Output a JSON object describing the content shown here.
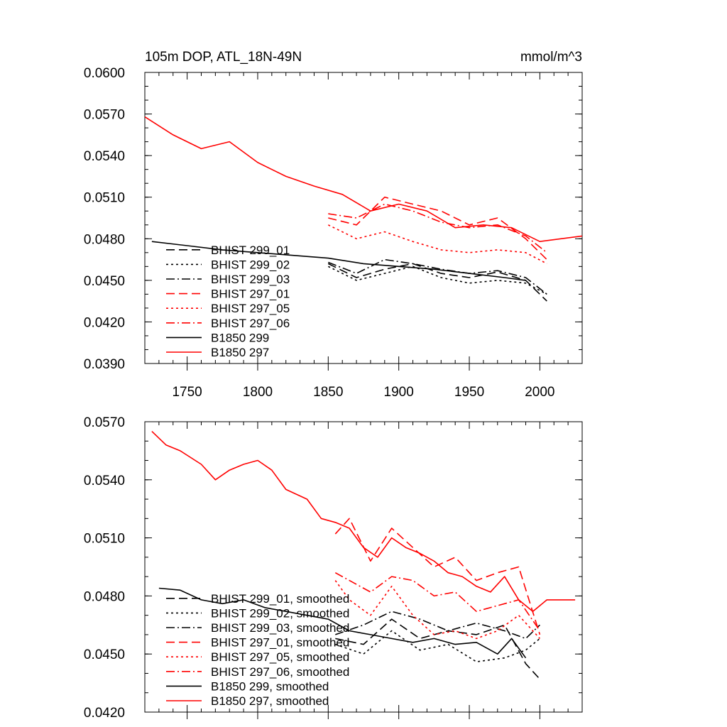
{
  "chart_data": [
    {
      "type": "line",
      "title": "105m DOP, ATL_18N-49N",
      "units": "mmol/m^3",
      "xlim": [
        1720,
        2030
      ],
      "ylim": [
        0.039,
        0.06
      ],
      "xticks": [
        "1750",
        "1800",
        "1850",
        "1900",
        "1950",
        "2000"
      ],
      "yticks": [
        "0.0390",
        "0.0420",
        "0.0450",
        "0.0480",
        "0.0510",
        "0.0540",
        "0.0570",
        "0.0600"
      ],
      "legend_position": "lower-left",
      "series": [
        {
          "name": "BHIST 299_01",
          "color": "#000000",
          "dash": "dashed",
          "x": [
            1850,
            1870,
            1890,
            1910,
            1930,
            1950,
            1970,
            1990,
            2005
          ],
          "y": [
            0.0462,
            0.0452,
            0.0458,
            0.0462,
            0.0455,
            0.0452,
            0.0456,
            0.045,
            0.0435
          ]
        },
        {
          "name": "BHIST 299_02",
          "color": "#000000",
          "dash": "dotted",
          "x": [
            1850,
            1870,
            1890,
            1910,
            1930,
            1950,
            1970,
            1990,
            2005
          ],
          "y": [
            0.046,
            0.045,
            0.0455,
            0.046,
            0.0452,
            0.0448,
            0.045,
            0.0448,
            0.044
          ]
        },
        {
          "name": "BHIST 299_03",
          "color": "#000000",
          "dash": "dashdot",
          "x": [
            1850,
            1870,
            1890,
            1910,
            1930,
            1950,
            1970,
            1990,
            2005
          ],
          "y": [
            0.0463,
            0.0455,
            0.0465,
            0.0462,
            0.0458,
            0.0455,
            0.0457,
            0.0452,
            0.044
          ]
        },
        {
          "name": "BHIST 297_01",
          "color": "#ff0000",
          "dash": "dashed",
          "x": [
            1850,
            1870,
            1890,
            1910,
            1930,
            1950,
            1970,
            1990,
            2005
          ],
          "y": [
            0.0495,
            0.049,
            0.051,
            0.0505,
            0.05,
            0.049,
            0.0495,
            0.048,
            0.0465
          ]
        },
        {
          "name": "BHIST 297_05",
          "color": "#ff0000",
          "dash": "dotted",
          "x": [
            1850,
            1870,
            1890,
            1910,
            1930,
            1950,
            1970,
            1990,
            2005
          ],
          "y": [
            0.049,
            0.048,
            0.0485,
            0.0478,
            0.0472,
            0.047,
            0.0472,
            0.047,
            0.0462
          ]
        },
        {
          "name": "BHIST 297_06",
          "color": "#ff0000",
          "dash": "dashdot",
          "x": [
            1850,
            1870,
            1890,
            1910,
            1930,
            1950,
            1970,
            1990,
            2005
          ],
          "y": [
            0.0498,
            0.0495,
            0.0505,
            0.05,
            0.0492,
            0.0488,
            0.049,
            0.0482,
            0.047
          ]
        },
        {
          "name": "B1850 299",
          "color": "#000000",
          "dash": "solid",
          "x": [
            1725,
            1750,
            1775,
            1800,
            1825,
            1850,
            1875,
            1900,
            1925,
            1950,
            1975,
            1990
          ],
          "y": [
            0.0478,
            0.0475,
            0.0472,
            0.047,
            0.0468,
            0.0466,
            0.0462,
            0.046,
            0.0458,
            0.0455,
            0.0452,
            0.045
          ]
        },
        {
          "name": "B1850 297",
          "color": "#ff0000",
          "dash": "solid",
          "x": [
            1720,
            1740,
            1760,
            1780,
            1800,
            1820,
            1840,
            1860,
            1880,
            1900,
            1920,
            1940,
            1960,
            1980,
            2000,
            2030
          ],
          "y": [
            0.0568,
            0.0555,
            0.0545,
            0.055,
            0.0535,
            0.0525,
            0.0518,
            0.0512,
            0.05,
            0.0505,
            0.05,
            0.0488,
            0.049,
            0.0488,
            0.0478,
            0.0482
          ]
        }
      ]
    },
    {
      "type": "line",
      "title": "",
      "xlim": [
        1720,
        2030
      ],
      "ylim": [
        0.042,
        0.057
      ],
      "yticks": [
        "0.0420",
        "0.0450",
        "0.0480",
        "0.0510",
        "0.0540",
        "0.0570"
      ],
      "legend_position": "lower-left",
      "series": [
        {
          "name": "BHIST 299_01, smoothed",
          "color": "#000000",
          "dash": "dashed",
          "x": [
            1855,
            1875,
            1895,
            1915,
            1935,
            1955,
            1975,
            1990,
            2000
          ],
          "y": [
            0.0458,
            0.0455,
            0.0468,
            0.0458,
            0.0462,
            0.046,
            0.0465,
            0.0445,
            0.0437
          ]
        },
        {
          "name": "BHIST 299_02, smoothed",
          "color": "#000000",
          "dash": "dotted",
          "x": [
            1855,
            1875,
            1895,
            1915,
            1935,
            1955,
            1975,
            1990,
            2000
          ],
          "y": [
            0.0455,
            0.045,
            0.0462,
            0.0452,
            0.0455,
            0.0446,
            0.0448,
            0.0452,
            0.0458
          ]
        },
        {
          "name": "BHIST 299_03, smoothed",
          "color": "#000000",
          "dash": "dashdot",
          "x": [
            1855,
            1875,
            1895,
            1915,
            1935,
            1955,
            1975,
            1990,
            2000
          ],
          "y": [
            0.046,
            0.0465,
            0.0472,
            0.0468,
            0.0462,
            0.0466,
            0.0462,
            0.0458,
            0.0465
          ]
        },
        {
          "name": "BHIST 297_01, smoothed",
          "color": "#ff0000",
          "dash": "dashed",
          "x": [
            1855,
            1865,
            1880,
            1895,
            1910,
            1925,
            1940,
            1955,
            1970,
            1985,
            2000
          ],
          "y": [
            0.0512,
            0.052,
            0.0498,
            0.0515,
            0.0505,
            0.0495,
            0.05,
            0.0488,
            0.0492,
            0.0495,
            0.046
          ]
        },
        {
          "name": "BHIST 297_05, smoothed",
          "color": "#ff0000",
          "dash": "dotted",
          "x": [
            1855,
            1865,
            1880,
            1895,
            1910,
            1925,
            1940,
            1955,
            1970,
            1985,
            2000
          ],
          "y": [
            0.0488,
            0.0478,
            0.047,
            0.0485,
            0.047,
            0.046,
            0.0462,
            0.0458,
            0.0462,
            0.047,
            0.0458
          ]
        },
        {
          "name": "BHIST 297_06, smoothed",
          "color": "#ff0000",
          "dash": "dashdot",
          "x": [
            1855,
            1865,
            1880,
            1895,
            1910,
            1925,
            1940,
            1955,
            1970,
            1985,
            2000
          ],
          "y": [
            0.0492,
            0.0488,
            0.0482,
            0.049,
            0.0488,
            0.048,
            0.0482,
            0.0472,
            0.0475,
            0.0478,
            0.0462
          ]
        },
        {
          "name": "B1850 299, smoothed",
          "color": "#000000",
          "dash": "solid",
          "x": [
            1730,
            1745,
            1760,
            1775,
            1790,
            1805,
            1820,
            1835,
            1850,
            1865,
            1880,
            1895,
            1910,
            1925,
            1940,
            1955,
            1970,
            1980,
            1990
          ],
          "y": [
            0.0484,
            0.0483,
            0.0478,
            0.0476,
            0.0478,
            0.0474,
            0.0472,
            0.047,
            0.0468,
            0.0462,
            0.046,
            0.0458,
            0.0456,
            0.0458,
            0.0455,
            0.0456,
            0.045,
            0.0458,
            0.0448
          ]
        },
        {
          "name": "B1850 297, smoothed",
          "color": "#ff0000",
          "dash": "solid",
          "x": [
            1725,
            1735,
            1745,
            1760,
            1770,
            1780,
            1790,
            1800,
            1810,
            1820,
            1835,
            1845,
            1855,
            1865,
            1875,
            1885,
            1895,
            1905,
            1915,
            1925,
            1935,
            1945,
            1955,
            1965,
            1975,
            1985,
            1995,
            2005,
            2015,
            2025
          ],
          "y": [
            0.0565,
            0.0558,
            0.0555,
            0.0548,
            0.054,
            0.0545,
            0.0548,
            0.055,
            0.0545,
            0.0535,
            0.053,
            0.052,
            0.0518,
            0.0515,
            0.0505,
            0.05,
            0.051,
            0.0505,
            0.0502,
            0.0498,
            0.0492,
            0.049,
            0.0485,
            0.0482,
            0.049,
            0.0478,
            0.0472,
            0.0478,
            0.0478,
            0.0478
          ]
        }
      ]
    }
  ]
}
